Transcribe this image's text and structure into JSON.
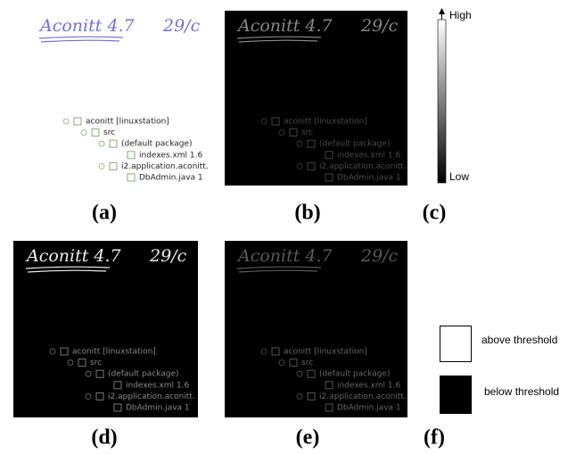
{
  "panel_labels": [
    "(a)",
    "(b)",
    "(c)",
    "(d)",
    "(e)",
    "(f)"
  ],
  "note": {
    "title": "Aconitt 4.7",
    "date": "29/c"
  },
  "tree": [
    "aconitt [linuxstation]",
    "src",
    "(default package)",
    "indexes.xml 1.6",
    "i2.application.aconitt.",
    "DbAdmin.java 1"
  ],
  "colorbar": {
    "high": "High",
    "low": "Low"
  },
  "legend": {
    "above": "above threshold",
    "below": "below threshold"
  }
}
